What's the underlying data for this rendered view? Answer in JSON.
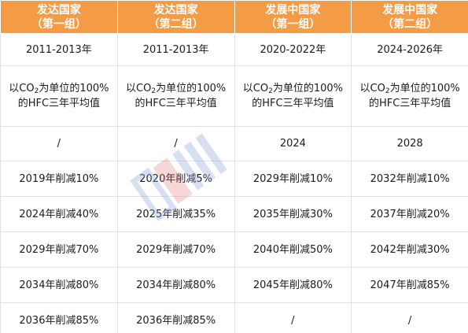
{
  "headers": [
    {
      "line1": "发达国家",
      "line2": "（第一组）"
    },
    {
      "line1": "发达国家",
      "line2": "（第二组）"
    },
    {
      "line1": "发展中国家",
      "line2": "（第一组）"
    },
    {
      "line1": "发展中国家",
      "line2": "（第二组）"
    }
  ],
  "years": [
    "2011-2013年",
    "2011-2013年",
    "2020-2022年",
    "2024-2026年"
  ],
  "desc": {
    "prefix": "以CO",
    "sub": "2",
    "suffix_line1": "为单位的100%",
    "line2": "的HFC三年平均值"
  },
  "base_year": [
    "/",
    "/",
    "2024",
    "2028"
  ],
  "steps": [
    [
      "2019年削减10%",
      "2020年削减5%",
      "2029年削减10%",
      "2032年削减10%"
    ],
    [
      "2024年削减40%",
      "2025年削减35%",
      "2035年削减30%",
      "2037年削减20%"
    ],
    [
      "2029年削减70%",
      "2029年削减70%",
      "2040年削减50%",
      "2042年削减30%"
    ],
    [
      "2034年削减80%",
      "2034年削减80%",
      "2045年削减80%",
      "2047年削减85%"
    ],
    [
      "2036年削减85%",
      "2036年削减85%",
      "/",
      "/"
    ]
  ],
  "colors": {
    "header_bg": "#f39b45",
    "header_text": "#ffffff",
    "border": "#e0e0e0",
    "watermark_blue": "#8fa8d8",
    "watermark_red": "#e07070"
  },
  "icons": {
    "watermark": "watermark-logo-icon"
  }
}
